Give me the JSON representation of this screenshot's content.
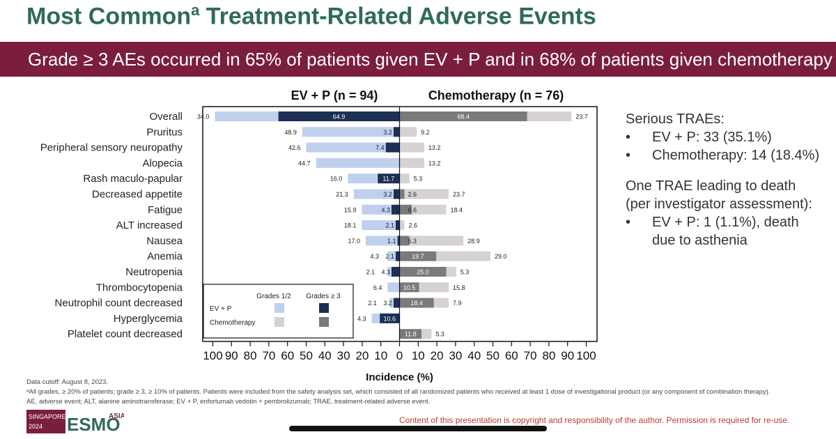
{
  "title": {
    "main": "Most Common",
    "sup": "a",
    "rest": " Treatment-Related Adverse Events"
  },
  "banner": "Grade ≥ 3 AEs occurred in 65% of patients given EV + P and in 68% of patients given chemotherapy",
  "colors": {
    "title": "#2f6b55",
    "banner": "#7b1e3e",
    "ev_low": "#bed0ec",
    "ev_high": "#1c2f55",
    "chemo_low": "#d6d1d2",
    "chemo_high": "#7a7a7a",
    "copyright": "#c0392b"
  },
  "chart_data": {
    "type": "bar",
    "orientation": "horizontal-butterfly",
    "left_title": "EV + P (n = 94)",
    "right_title": "Chemotherapy (n = 76)",
    "xlabel": "Incidence (%)",
    "xlim": [
      -100,
      100
    ],
    "x_ticks": [
      "100",
      "90",
      "80",
      "70",
      "60",
      "50",
      "40",
      "30",
      "20",
      "10",
      "0",
      "10",
      "20",
      "30",
      "40",
      "50",
      "60",
      "70",
      "80",
      "90",
      "100"
    ],
    "legend": {
      "placement": "bottom-left",
      "col_low": "Grades 1/2",
      "col_high": "Grades ≥ 3",
      "row_ev": "EV + P",
      "row_chemo": "Chemotherapy"
    },
    "categories": [
      "Overall",
      "Pruritus",
      "Peripheral sensory neuropathy",
      "Alopecia",
      "Rash maculo-papular",
      "Decreased appetite",
      "Fatigue",
      "ALT increased",
      "Nausea",
      "Anemia",
      "Neutropenia",
      "Thrombocytopenia",
      "Neutrophil count decreased",
      "Hyperglycemia",
      "Platelet count decreased"
    ],
    "series": [
      {
        "name": "EV + P Grades 1/2",
        "values": [
          34.0,
          48.9,
          42.6,
          44.7,
          16.0,
          21.3,
          15.9,
          18.1,
          17.0,
          4.3,
          2.1,
          6.4,
          2.1,
          4.3,
          0
        ]
      },
      {
        "name": "EV + P Grades ≥ 3",
        "values": [
          64.9,
          3.2,
          7.4,
          0,
          11.7,
          3.2,
          4.3,
          2.1,
          1.1,
          2.1,
          4.3,
          0,
          3.2,
          10.6,
          0
        ]
      },
      {
        "name": "Chemotherapy Grades ≥ 3",
        "values": [
          68.4,
          0,
          0,
          0,
          0,
          2.6,
          6.6,
          0,
          5.3,
          19.7,
          25.0,
          10.5,
          18.4,
          0,
          11.8
        ]
      },
      {
        "name": "Chemotherapy Grades 1/2",
        "values": [
          23.7,
          9.2,
          13.2,
          13.2,
          5.3,
          23.7,
          18.4,
          2.6,
          28.9,
          29.0,
          5.3,
          15.8,
          7.9,
          0,
          5.3
        ]
      }
    ],
    "ev_low_labels": [
      "34.0",
      "48.9",
      "42.6",
      "44.7",
      "16.0",
      "21.3",
      "15.9",
      "18.1",
      "17.0",
      "4.3",
      "2.1",
      "6.4",
      "2.1",
      "4.3",
      ""
    ],
    "ev_high_labels": [
      "64.9",
      "3.2",
      "7.4",
      "",
      "11.7",
      "3.2",
      "4.3",
      "2.1",
      "1.1",
      "2.1",
      "4.3",
      "",
      "3.2",
      "10.6",
      ""
    ],
    "chemo_high_labels": [
      "68.4",
      "",
      "",
      "",
      "",
      "2.6",
      "6.6",
      "",
      "5.3",
      "19.7",
      "25.0",
      "10.5",
      "18.4",
      "",
      "11.8"
    ],
    "chemo_low_labels": [
      "23.7",
      "9.2",
      "13.2",
      "13.2",
      "5.3",
      "23.7",
      "18.4",
      "2.6",
      "28.9",
      "29.0",
      "5.3",
      "15.8",
      "7.9",
      "",
      "5.3"
    ]
  },
  "side": {
    "serious_heading": "Serious TRAEs:",
    "serious_items": [
      "EV + P: 33 (35.1%)",
      "Chemotherapy: 14 (18.4%)"
    ],
    "death_heading_1": "One TRAE leading to death",
    "death_heading_2": "(per investigator assessment):",
    "death_item_1": "EV + P: 1 (1.1%), death",
    "death_item_2": "due to asthenia",
    "bullet": "•"
  },
  "footnotes": {
    "cutoff": "Data cutoff: August 8, 2023.",
    "note_a": "ᵃAll grades, ≥ 20% of patients; grade ≥ 3, ≥ 10% of patients. Patients were included from the safety analysis set, which consisted of all randomized patients who received at least 1 dose of investigational product (or any component of combination therapy).",
    "abbrev": "AE, adverse event; ALT, alanine aminotransferase; EV + P, enfortumab vedotin + pembrolizumab; TRAE, treatment-related adverse event."
  },
  "logo": {
    "city": "SINGAPORE",
    "year": "2024",
    "brand": "ESMO",
    "suffix": "ASIA"
  },
  "copyright": "Content of this presentation is copyright and responsibility of the author. Permission is required for re-use."
}
